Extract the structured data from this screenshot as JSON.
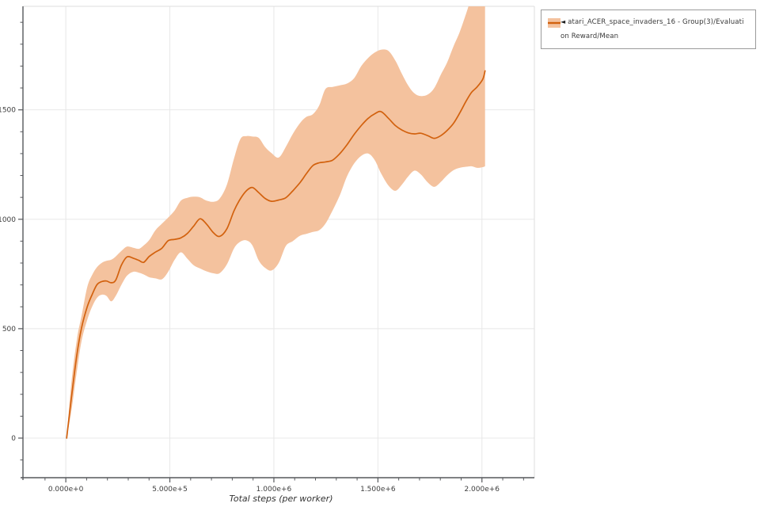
{
  "legend": {
    "marker": "◄",
    "line1": "atari_ACER_space_invaders_16 - Group(3)/Evaluati",
    "line2": "on Reward/Mean"
  },
  "chart_data": {
    "type": "line",
    "title": "",
    "xlabel": "Total steps (per worker)",
    "ylabel": "",
    "grid": true,
    "legend_position": "outside-top-right",
    "xlim": [
      -206000,
      2252000
    ],
    "ylim": [
      -181,
      1973
    ],
    "x_ticks": [
      {
        "v": 0,
        "label": "0.000e+0"
      },
      {
        "v": 500000,
        "label": "5.000e+5"
      },
      {
        "v": 1000000,
        "label": "1.000e+6"
      },
      {
        "v": 1500000,
        "label": "1.500e+6"
      },
      {
        "v": 2000000,
        "label": "2.000e+6"
      }
    ],
    "y_ticks": [
      {
        "v": 0,
        "label": "0"
      },
      {
        "v": 500,
        "label": "500"
      },
      {
        "v": 1000,
        "label": "1000"
      },
      {
        "v": 1500,
        "label": "1500"
      }
    ],
    "x_minor": {
      "from": -100000,
      "to": 2200000,
      "step": 100000
    },
    "y_minor": {
      "from": -100,
      "to": 1900,
      "step": 100
    },
    "series": [
      {
        "name": "atari_ACER_space_invaders_16 - Group(3)/Evaluation Reward/Mean",
        "line_color": "#d2610e",
        "band_color": "#f4c29e",
        "points_format": [
          "steps",
          "mean",
          "band_low",
          "band_high"
        ],
        "points": [
          [
            4000,
            0,
            0,
            0
          ],
          [
            27000,
            185,
            125,
            255
          ],
          [
            53000,
            380,
            305,
            450
          ],
          [
            76000,
            505,
            445,
            560
          ],
          [
            103000,
            600,
            540,
            690
          ],
          [
            126000,
            655,
            600,
            745
          ],
          [
            149000,
            700,
            640,
            780
          ],
          [
            172000,
            715,
            655,
            800
          ],
          [
            195000,
            718,
            650,
            810
          ],
          [
            218000,
            710,
            625,
            815
          ],
          [
            240000,
            722,
            650,
            830
          ],
          [
            267000,
            790,
            700,
            855
          ],
          [
            294000,
            828,
            742,
            875
          ],
          [
            324000,
            822,
            760,
            870
          ],
          [
            351000,
            812,
            756,
            865
          ],
          [
            374000,
            803,
            748,
            880
          ],
          [
            401000,
            830,
            735,
            905
          ],
          [
            431000,
            850,
            730,
            950
          ],
          [
            462000,
            868,
            726,
            980
          ],
          [
            492000,
            902,
            760,
            1008
          ],
          [
            523000,
            908,
            815,
            1040
          ],
          [
            553000,
            915,
            849,
            1085
          ],
          [
            584000,
            935,
            820,
            1098
          ],
          [
            614000,
            968,
            790,
            1103
          ],
          [
            645000,
            1002,
            775,
            1100
          ],
          [
            676000,
            978,
            762,
            1085
          ],
          [
            710000,
            938,
            753,
            1080
          ],
          [
            740000,
            922,
            754,
            1095
          ],
          [
            775000,
            958,
            795,
            1160
          ],
          [
            809000,
            1040,
            868,
            1280
          ],
          [
            840000,
            1095,
            898,
            1368
          ],
          [
            870000,
            1132,
            903,
            1380
          ],
          [
            897000,
            1145,
            880,
            1378
          ],
          [
            927000,
            1122,
            812,
            1372
          ],
          [
            958000,
            1095,
            778,
            1330
          ],
          [
            989000,
            1082,
            766,
            1302
          ],
          [
            1023000,
            1088,
            800,
            1282
          ],
          [
            1057000,
            1098,
            877,
            1330
          ],
          [
            1091000,
            1130,
            900,
            1390
          ],
          [
            1126000,
            1168,
            925,
            1440
          ],
          [
            1156000,
            1208,
            933,
            1468
          ],
          [
            1187000,
            1245,
            942,
            1480
          ],
          [
            1218000,
            1258,
            950,
            1520
          ],
          [
            1248000,
            1262,
            980,
            1595
          ],
          [
            1282000,
            1270,
            1040,
            1605
          ],
          [
            1317000,
            1300,
            1110,
            1612
          ],
          [
            1351000,
            1340,
            1195,
            1620
          ],
          [
            1386000,
            1388,
            1255,
            1645
          ],
          [
            1420000,
            1428,
            1290,
            1700
          ],
          [
            1454000,
            1462,
            1300,
            1738
          ],
          [
            1485000,
            1482,
            1270,
            1762
          ],
          [
            1515000,
            1492,
            1210,
            1775
          ],
          [
            1550000,
            1462,
            1155,
            1770
          ],
          [
            1584000,
            1428,
            1130,
            1725
          ],
          [
            1615000,
            1408,
            1158,
            1665
          ],
          [
            1645000,
            1395,
            1195,
            1612
          ],
          [
            1676000,
            1390,
            1222,
            1575
          ],
          [
            1706000,
            1393,
            1205,
            1563
          ],
          [
            1740000,
            1382,
            1168,
            1570
          ],
          [
            1771000,
            1370,
            1148,
            1600
          ],
          [
            1802000,
            1382,
            1170,
            1660
          ],
          [
            1832000,
            1405,
            1200,
            1715
          ],
          [
            1863000,
            1438,
            1224,
            1790
          ],
          [
            1893000,
            1485,
            1235,
            1855
          ],
          [
            1924000,
            1540,
            1240,
            1940
          ],
          [
            1950000,
            1580,
            1242,
            2010
          ],
          [
            1977000,
            1605,
            1235,
            2030
          ],
          [
            2004000,
            1640,
            1238,
            2040
          ],
          [
            2015000,
            1678,
            1242,
            2045
          ]
        ]
      }
    ],
    "colors": {
      "grid": "#e8e8e8",
      "border_light": "#dedede",
      "spine": "#56585c",
      "tick_label": "#3d3d3d",
      "axis_label": "#323232"
    }
  }
}
